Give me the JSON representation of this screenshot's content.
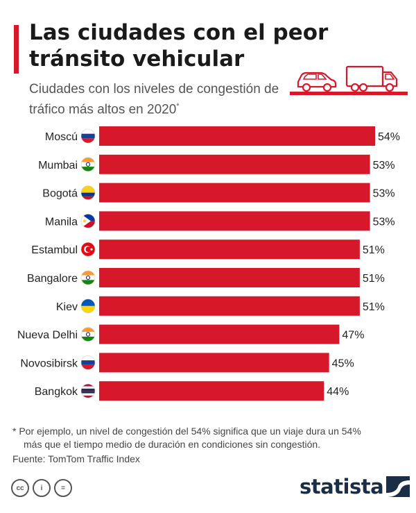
{
  "header": {
    "title": "Las ciudades con el peor tránsito vehicular",
    "subtitle": "Ciudades con los niveles de congestión de tráfico más altos en 2020",
    "subtitle_mark": "*"
  },
  "chart_data": {
    "type": "bar",
    "orientation": "horizontal",
    "title": "Las ciudades con el peor tránsito vehicular",
    "subtitle": "Ciudades con los niveles de congestión de tráfico más altos en 2020*",
    "categories": [
      "Moscú",
      "Mumbai",
      "Bogotá",
      "Manila",
      "Estambul",
      "Bangalore",
      "Kiev",
      "Nueva Delhi",
      "Novosibirsk",
      "Bangkok"
    ],
    "values": [
      54,
      53,
      53,
      53,
      51,
      51,
      51,
      47,
      45,
      44
    ],
    "value_labels": [
      "54%",
      "53%",
      "53%",
      "53%",
      "51%",
      "51%",
      "51%",
      "47%",
      "45%",
      "44%"
    ],
    "flags": [
      "russia",
      "india",
      "colombia",
      "philippines",
      "turkey",
      "india",
      "ukraine",
      "india",
      "russia",
      "thailand"
    ],
    "unit": "%",
    "xlim": [
      0,
      54
    ],
    "grid": false,
    "bar_color": "#d7182a"
  },
  "footer": {
    "note_line1": "* Por ejemplo, un nivel de congestión del 54% significa que un viaje dura un 54%",
    "note_line2": "más que el tiempo medio de duración en condiciones sin congestión.",
    "source": "Fuente: TomTom Traffic Index",
    "license_icons": [
      "cc-icon",
      "attribution-icon",
      "no-derivatives-icon"
    ],
    "license_labels": [
      "cc",
      "i",
      "="
    ],
    "brand": "statista"
  },
  "colors": {
    "accent": "#d7182a",
    "brand_dark": "#1a2e45",
    "text": "#222222",
    "muted": "#555555"
  }
}
